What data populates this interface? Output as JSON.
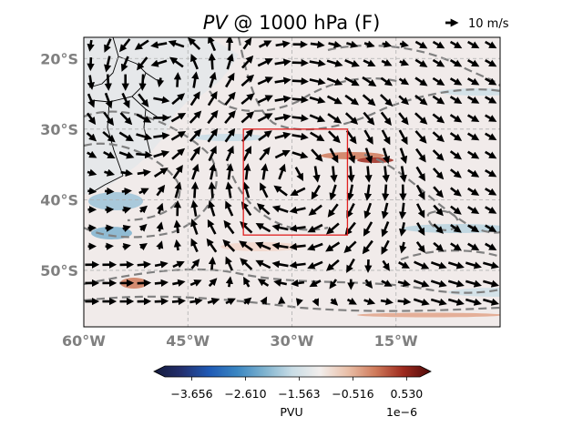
{
  "chart_data": {
    "type": "heatmap",
    "title_var": "PV",
    "title_rest": " @ 1000 hPa (F)",
    "x_axis": {
      "range": [
        -60,
        0
      ],
      "ticks": [
        -60,
        -45,
        -30,
        -15
      ],
      "tick_labels": [
        "60°W",
        "45°W",
        "30°W",
        "15°W"
      ]
    },
    "y_axis": {
      "range": [
        -58,
        -17
      ],
      "ticks": [
        -20,
        -30,
        -40,
        -50
      ],
      "tick_labels": [
        "20°S",
        "30°S",
        "40°S",
        "50°S"
      ]
    },
    "grid": true,
    "colorbar": {
      "ticks": [
        -3.656,
        -2.61,
        -1.563,
        -0.516,
        0.53
      ],
      "tick_labels": [
        "−3.656",
        "−2.610",
        "−1.563",
        "−0.516",
        "0.530"
      ],
      "unit": "PVU",
      "scale_label": "1e−6",
      "colors": [
        "#141a3a",
        "#232f6e",
        "#1f5ab5",
        "#3a86c2",
        "#7fb3cf",
        "#c9dde6",
        "#f2eeec",
        "#e9bfa8",
        "#cf7a5a",
        "#9e2a1e",
        "#4f0a0a"
      ]
    },
    "box": {
      "lon": [
        -37,
        -22
      ],
      "lat": [
        -45,
        -30
      ],
      "color": "#e02020"
    },
    "quiver_key": {
      "label": "10 m/s"
    },
    "colors": {
      "land": "#e6e8ea",
      "ocean": "#f1ebea",
      "grid": "#b0b0b0",
      "contour": "#808080",
      "arrow": "#000000"
    }
  }
}
